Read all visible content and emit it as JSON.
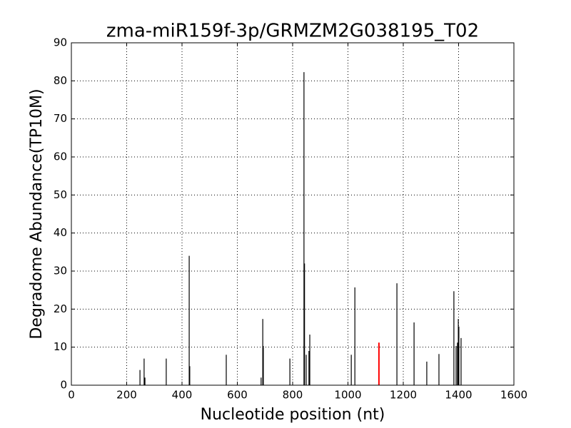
{
  "chart_data": {
    "type": "vlines",
    "title": "zma-miR159f-3p/GRMZM2G038195_T02",
    "x_label": "Nucleotide position (nt)",
    "y_label": "Degradome Abundance(TP10M)",
    "series": [
      {
        "color": "#000000",
        "x": [
          248,
          263,
          266,
          343,
          426,
          428,
          560,
          686,
          692,
          694,
          790,
          841,
          843,
          849,
          859,
          862,
          1012,
          1025,
          1177,
          1239,
          1285,
          1329,
          1383,
          1391,
          1396,
          1399,
          1401,
          1409
        ],
        "values": [
          4,
          7,
          2,
          7,
          34,
          5,
          8,
          2,
          17.4,
          10.3,
          7,
          82.3,
          32,
          8,
          9,
          13.3,
          8,
          25.7,
          26.8,
          16.5,
          6.2,
          8.2,
          24.7,
          10.3,
          11.2,
          17.4,
          15.4,
          12.4
        ]
      },
      {
        "color": "#ff0000",
        "x": [
          1112
        ],
        "values": [
          11.2
        ]
      }
    ],
    "xlim": [
      0,
      1600
    ],
    "xticks": [
      0,
      200,
      400,
      600,
      800,
      1000,
      1200,
      1400,
      1600
    ],
    "ylim": [
      0,
      90
    ],
    "yticks": [
      0,
      10,
      20,
      30,
      40,
      50,
      60,
      70,
      80,
      90
    ],
    "grid": true
  }
}
